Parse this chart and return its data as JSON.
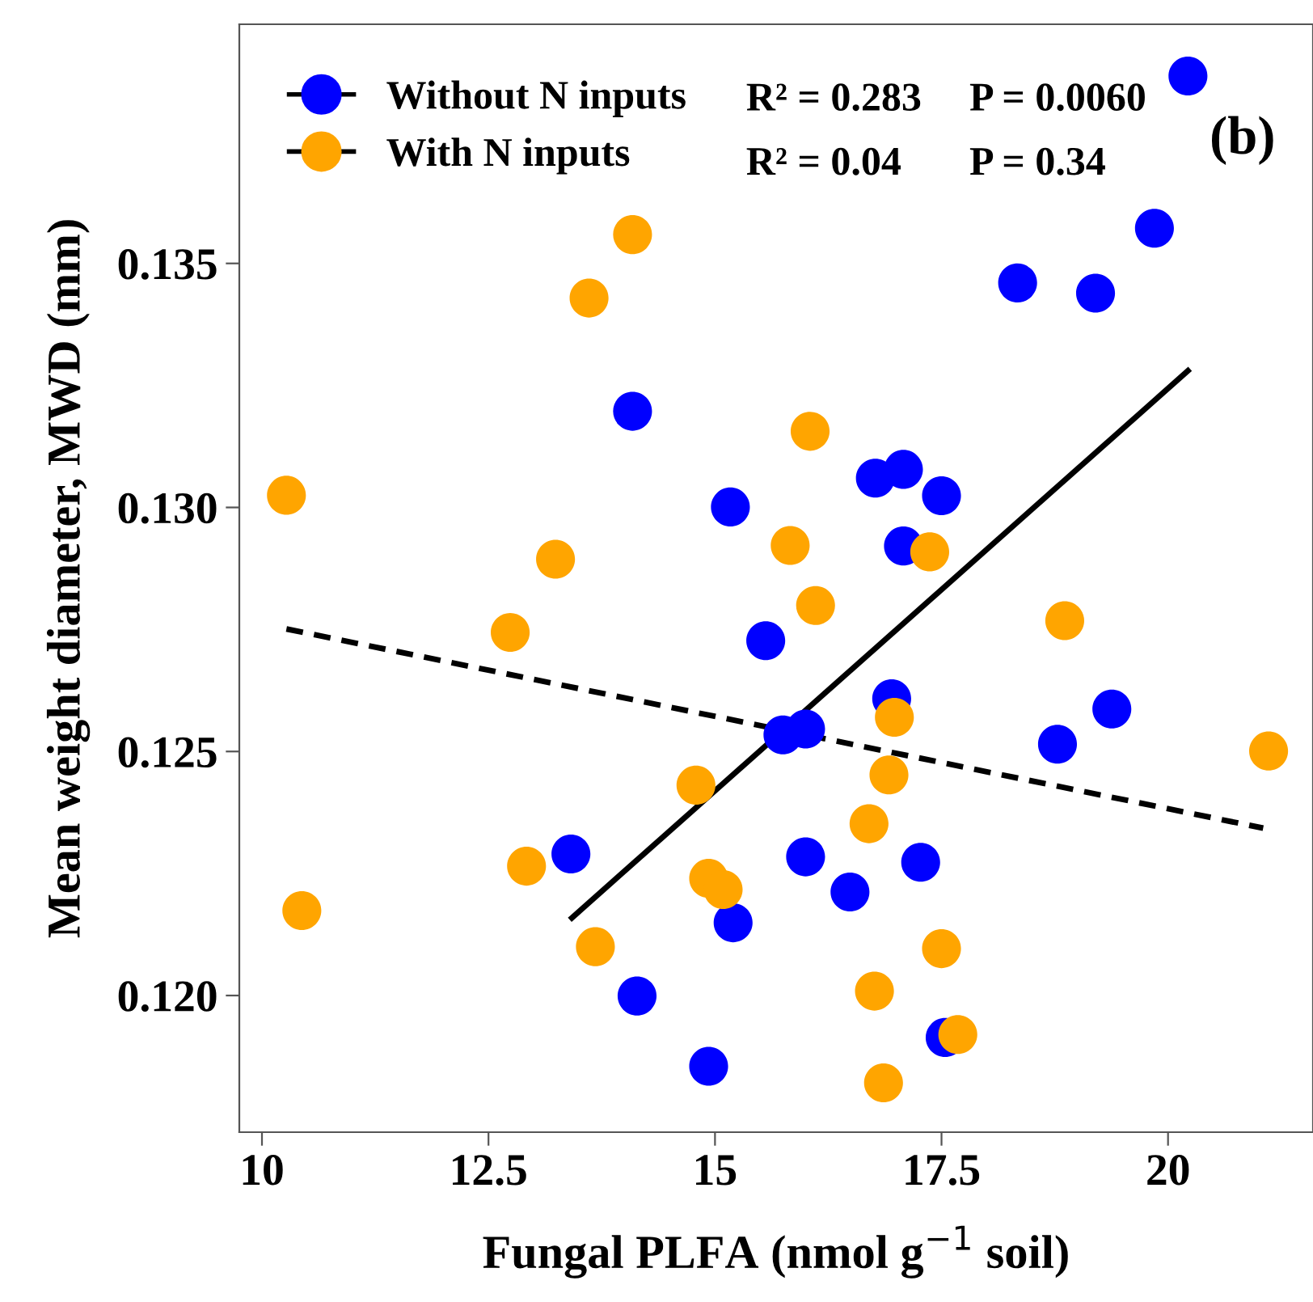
{
  "chart_data": {
    "type": "scatter",
    "xlabel": "Fungal PLFA (nmol g$^{−1}$ soil)",
    "ylabel": "Mean weight diameter, MWD (mm)",
    "xlim": [
      9.75,
      21.6
    ],
    "xticks": [
      10,
      12.5,
      15,
      17.5,
      20
    ],
    "ylim": [
      0.1172,
      0.1399
    ],
    "yticks": [
      {
        "value": 0.12,
        "label": "0.120"
      },
      {
        "value": 0.125,
        "label": "0.125"
      },
      {
        "value": 0.13,
        "label": "0.130"
      },
      {
        "value": 0.135,
        "label": "0.135"
      }
    ],
    "legend": "top left",
    "grid": false,
    "annotations": [
      "R² = 0.283",
      "P = 0.0060",
      "R² = 0.04",
      "P = 0.34",
      "(b)"
    ],
    "series": [
      {
        "name": "Without N inputs",
        "marker": "circle",
        "color": "#0000ff",
        "x": [
          20.22,
          19.85,
          18.34,
          19.2,
          14.09,
          15.17,
          16.77,
          17.08,
          17.5,
          17.08,
          15.56,
          16.95,
          15.75,
          16.0,
          18.78,
          19.38,
          13.41,
          16.0,
          16.49,
          17.27,
          15.2,
          14.14,
          14.93,
          17.54
        ],
        "values": [
          0.13884,
          0.13572,
          0.1346,
          0.13439,
          0.13197,
          0.13001,
          0.1306,
          0.13078,
          0.13024,
          0.12921,
          0.12727,
          0.12608,
          0.12534,
          0.12546,
          0.12515,
          0.12587,
          0.1229,
          0.12284,
          0.12212,
          0.12273,
          0.12149,
          0.11999,
          0.11855,
          0.11914
        ]
      },
      {
        "name": "With N inputs",
        "marker": "circle",
        "color": "#ffa500",
        "x": [
          14.09,
          13.61,
          10.27,
          16.05,
          13.24,
          15.83,
          17.37,
          16.11,
          18.86,
          12.74,
          16.98,
          21.11,
          16.92,
          14.79,
          16.7,
          12.92,
          14.93,
          15.09,
          10.44,
          13.68,
          17.5,
          16.76,
          17.68,
          16.86
        ],
        "values": [
          0.13559,
          0.13429,
          0.13025,
          0.13156,
          0.12894,
          0.12922,
          0.12909,
          0.12799,
          0.12768,
          0.12744,
          0.1257,
          0.12501,
          0.12452,
          0.12431,
          0.12352,
          0.12265,
          0.1224,
          0.12217,
          0.12174,
          0.121,
          0.12096,
          0.12009,
          0.1192,
          0.11821
        ]
      },
      {
        "type": "line",
        "color": "#000000",
        "line_style": "solid",
        "x": [
          13.42,
          20.22
        ],
        "values": [
          0.12159,
          0.1328
        ]
      },
      {
        "type": "line",
        "color": "#000000",
        "line_style": "dashed",
        "x": [
          10.27,
          21.05
        ],
        "values": [
          0.12751,
          0.12343
        ]
      }
    ]
  }
}
